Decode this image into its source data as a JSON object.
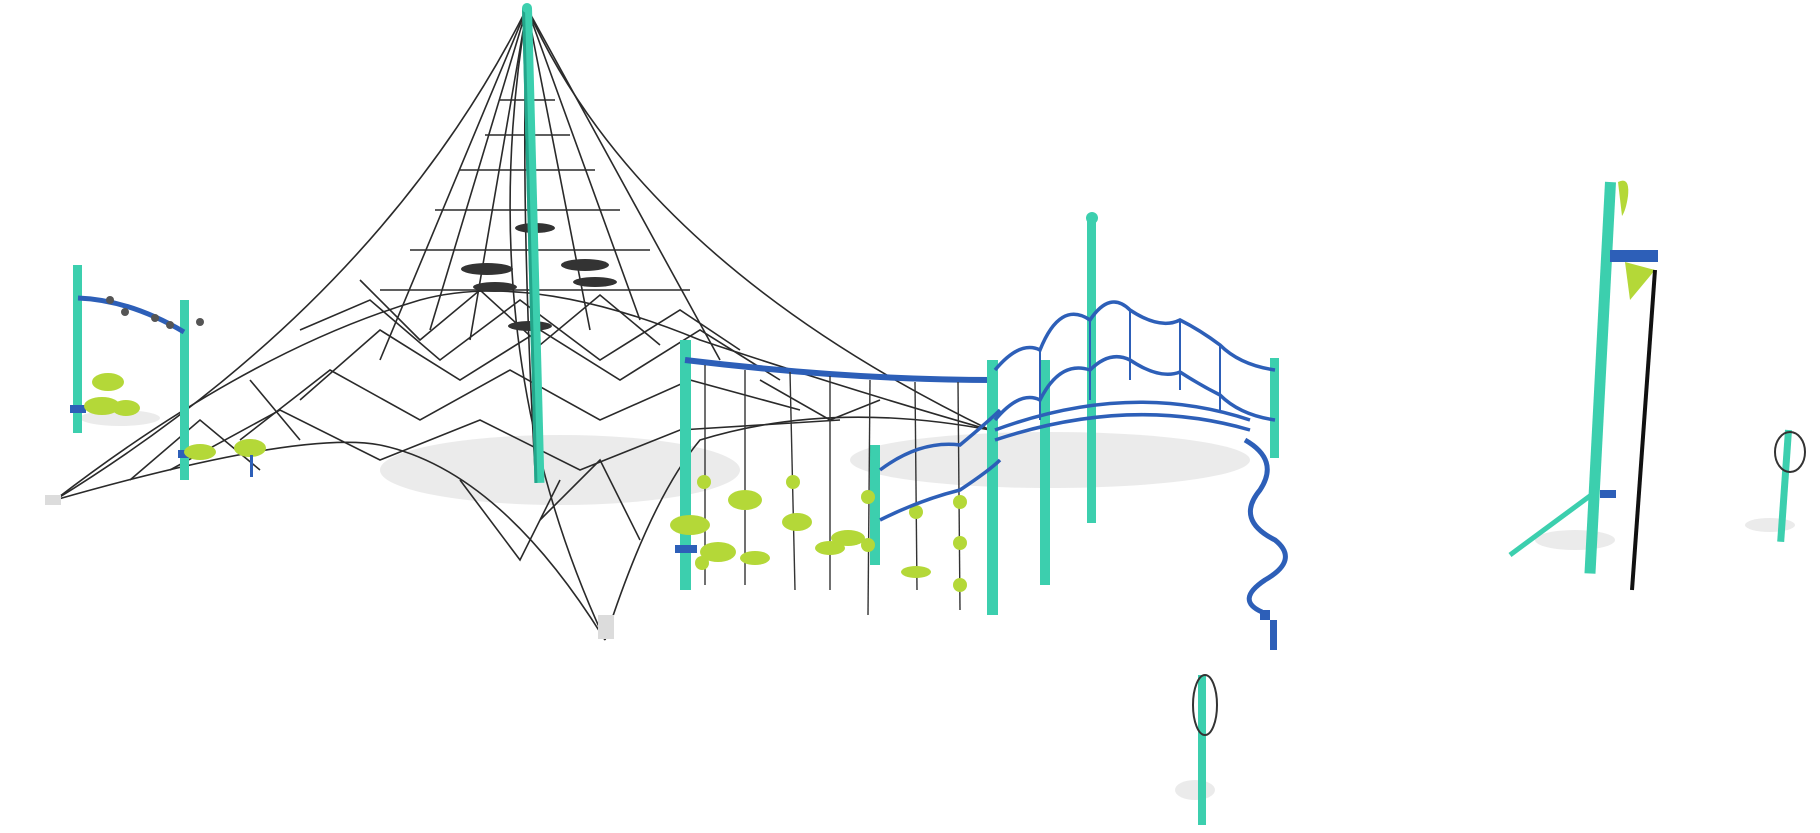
{
  "scene": {
    "background": "#ffffff",
    "colors": {
      "post": "#3ccfae",
      "post_shade": "#23a58a",
      "rail": "#2d5fb8",
      "rail_dark": "#1f4590",
      "rope": "#2a2a2a",
      "pod": "#b4d838",
      "pod_shade": "#8fb020",
      "shadow": "#d9d9d9"
    },
    "components": [
      "rope-pyramid-net",
      "overhead-ladder-with-stepping-pods",
      "hanging-pod-traverse",
      "wavy-rail-bridge",
      "spiral-pole",
      "standalone-post-with-loop",
      "tall-post-with-rope",
      "small-post-with-loop"
    ]
  }
}
